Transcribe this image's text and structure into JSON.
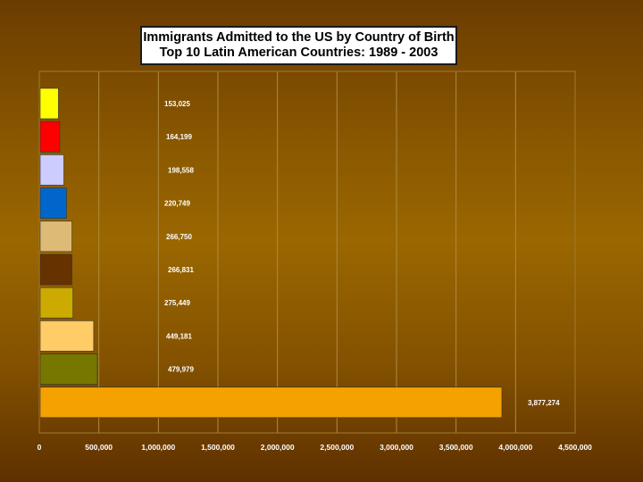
{
  "chart_data": {
    "type": "bar",
    "orientation": "horizontal",
    "title": "Immigrants Admitted to the US by Country of Birth",
    "subtitle": "Top 10 Latin American Countries: 1989 - 2003",
    "xlim": [
      0,
      4500000
    ],
    "xticks": [
      0,
      500000,
      1000000,
      1500000,
      2000000,
      2500000,
      3000000,
      3500000,
      4000000,
      4500000
    ],
    "xtick_labels": [
      "0",
      "500,000",
      "1,000,000",
      "1,500,000",
      "2,000,000",
      "2,500,000",
      "3,000,000",
      "3,500,000",
      "4,000,000",
      "4,500,000"
    ],
    "grid": true,
    "legend": "none",
    "bars": [
      {
        "value": 153025,
        "label": "153,025",
        "color": "#ffff00"
      },
      {
        "value": 164199,
        "label": "164,199",
        "color": "#ff0000"
      },
      {
        "value": 198558,
        "label": "198,558",
        "color": "#ccccff"
      },
      {
        "value": 220749,
        "label": "220,749",
        "color": "#0066cc"
      },
      {
        "value": 266750,
        "label": "266,750",
        "color": "#ddbb77"
      },
      {
        "value": 266831,
        "label": "266,831",
        "color": "#663300"
      },
      {
        "value": 275449,
        "label": "275,449",
        "color": "#ccaa00"
      },
      {
        "value": 449181,
        "label": "449,181",
        "color": "#ffcc66"
      },
      {
        "value": 479979,
        "label": "479,979",
        "color": "#777700"
      },
      {
        "value": 3877274,
        "label": "3,877,274",
        "color": "#f5a200"
      }
    ]
  }
}
